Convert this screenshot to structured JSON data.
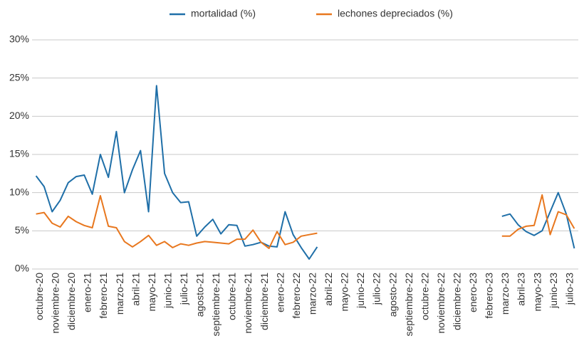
{
  "chart_data": {
    "type": "line",
    "categories": [
      "octubre-20",
      null,
      "noviembre-20",
      null,
      "diciembre-20",
      null,
      "enero-21",
      null,
      "febrero-21",
      null,
      "marzo-21",
      null,
      "abril-21",
      null,
      "mayo-21",
      null,
      "junio-21",
      null,
      "julio-21",
      null,
      "agosto-21",
      null,
      "septiembre-21",
      null,
      "octubre-21",
      null,
      "noviembre-21",
      null,
      "diciembre-21",
      null,
      "enero-22",
      null,
      "febrero-22",
      null,
      "marzo-22",
      null,
      "abril-22",
      null,
      "mayo-22",
      null,
      "junio-22",
      null,
      "julio-22",
      null,
      "agosto-22",
      null,
      "septiembre-22",
      null,
      "octubre-22",
      null,
      "noviembre-22",
      null,
      "diciembre-22",
      null,
      "enero-23",
      null,
      "febrero-23",
      null,
      "marzo-23",
      null,
      "abril-23",
      null,
      "mayo-23",
      null,
      "junio-23",
      null,
      "julio-23",
      null
    ],
    "series": [
      {
        "name": "mortalidad (%)",
        "color": "#1f6fa8",
        "values": [
          12.2,
          10.8,
          7.5,
          9,
          11.3,
          12.1,
          12.3,
          9.8,
          15,
          12,
          18,
          10,
          13,
          15.5,
          7.5,
          24,
          12.5,
          10,
          8.7,
          8.8,
          4.3,
          5.5,
          6.5,
          4.6,
          5.8,
          5.7,
          3,
          3.2,
          3.5,
          3,
          2.9,
          7.5,
          4.5,
          2.8,
          1.3,
          2.9,
          null,
          null,
          null,
          null,
          null,
          null,
          null,
          null,
          null,
          null,
          null,
          null,
          null,
          null,
          null,
          null,
          null,
          null,
          null,
          null,
          null,
          null,
          6.9,
          7.2,
          5.8,
          4.9,
          4.4,
          5,
          7.5,
          10,
          7.2,
          2.7
        ]
      },
      {
        "name": "lechones depreciados (%)",
        "color": "#e8771e",
        "values": [
          7.2,
          7.4,
          6,
          5.5,
          6.9,
          6.2,
          5.7,
          5.4,
          9.6,
          5.6,
          5.4,
          3.6,
          2.9,
          3.6,
          4.4,
          3.1,
          3.6,
          2.8,
          3.3,
          3.1,
          3.4,
          3.6,
          3.5,
          3.4,
          3.3,
          3.9,
          3.9,
          5.1,
          3.5,
          2.7,
          4.9,
          3.2,
          3.5,
          4.3,
          4.5,
          4.7,
          null,
          null,
          null,
          null,
          null,
          null,
          null,
          null,
          null,
          null,
          null,
          null,
          null,
          null,
          null,
          null,
          null,
          null,
          null,
          null,
          null,
          null,
          4.3,
          4.3,
          5.2,
          5.6,
          5.7,
          9.7,
          4.5,
          7.5,
          7.1,
          5.3
        ]
      }
    ],
    "ylim": [
      0,
      30
    ],
    "yticks": [
      {
        "value": 0,
        "label": "0%"
      },
      {
        "value": 5,
        "label": "5%"
      },
      {
        "value": 10,
        "label": "10%"
      },
      {
        "value": 15,
        "label": "15%"
      },
      {
        "value": 20,
        "label": "20%"
      },
      {
        "value": 25,
        "label": "25%"
      },
      {
        "value": 30,
        "label": "30%"
      }
    ],
    "grid": true
  }
}
